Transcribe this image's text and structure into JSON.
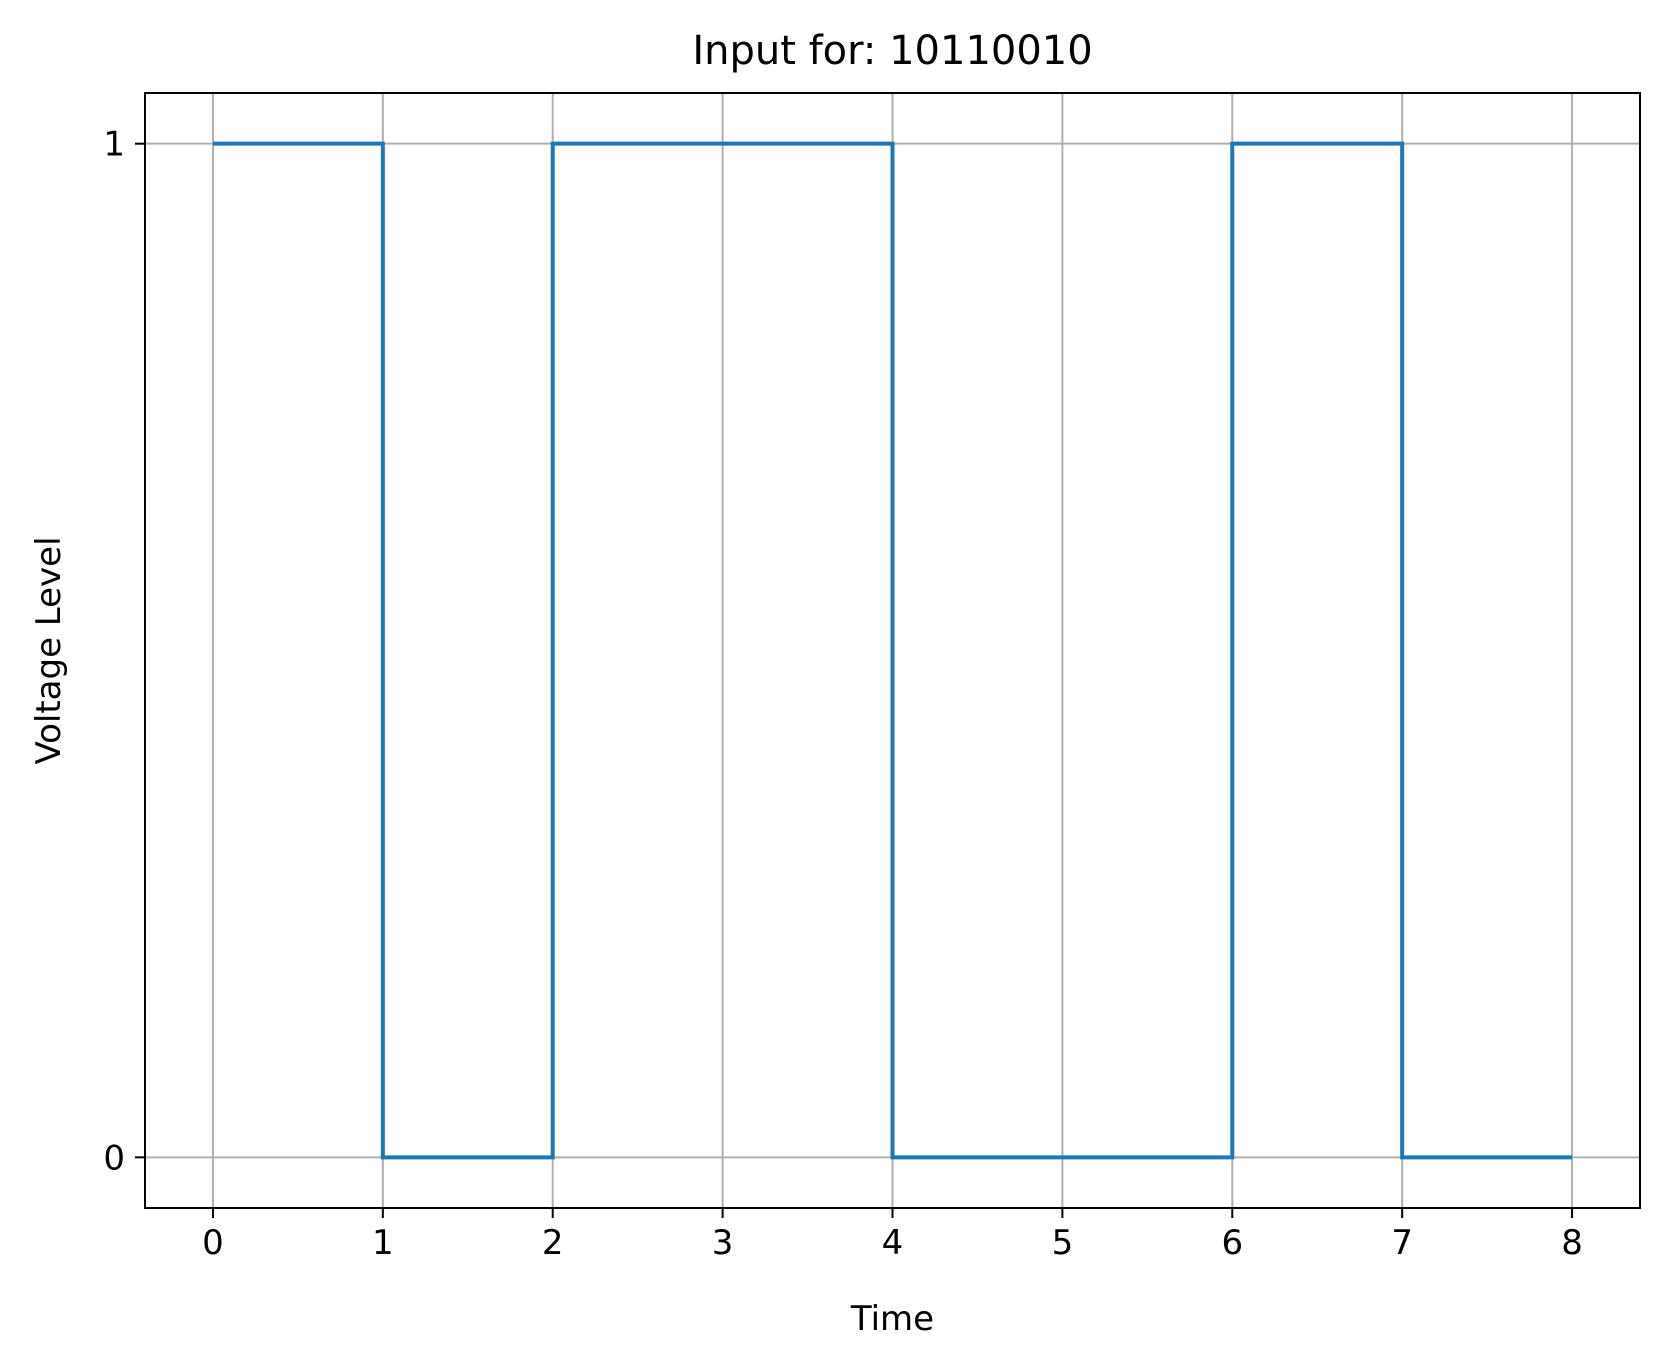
{
  "chart_data": {
    "type": "line",
    "step": "post",
    "title": "Input for:  10110010",
    "xlabel": "Time",
    "ylabel": "Voltage Level",
    "x": [
      0,
      1,
      2,
      3,
      4,
      5,
      6,
      7,
      8
    ],
    "series": [
      {
        "values": [
          1,
          0,
          1,
          1,
          0,
          0,
          1,
          0,
          0
        ],
        "color": "#1f77b4"
      }
    ],
    "xlim": [
      -0.4,
      8.4
    ],
    "ylim": [
      -0.05,
      1.05
    ],
    "xticks": [
      "0",
      "1",
      "2",
      "3",
      "4",
      "5",
      "6",
      "7",
      "8"
    ],
    "yticks": [
      "0",
      "1"
    ],
    "grid": true,
    "grid_color": "#b0b0b0"
  }
}
